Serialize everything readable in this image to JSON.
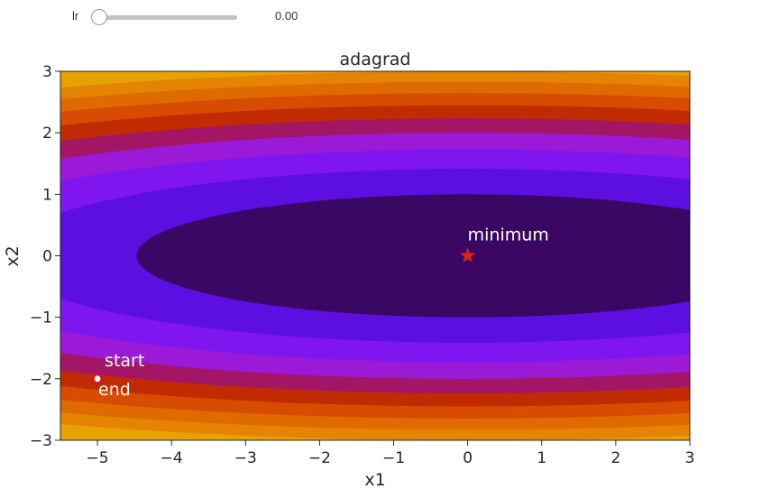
{
  "slider": {
    "label": "lr",
    "value_text": "0.00",
    "value": 0.0,
    "min": 0.0
  },
  "chart_data": {
    "type": "contour",
    "title": "adagrad",
    "xlabel": "x1",
    "ylabel": "x2",
    "xlim": [
      -5.5,
      3
    ],
    "ylim": [
      -3,
      3
    ],
    "xticks": [
      -5,
      -4,
      -3,
      -2,
      -1,
      0,
      1,
      2,
      3
    ],
    "yticks": [
      -3,
      -2,
      -1,
      0,
      1,
      2,
      3
    ],
    "xtick_labels": [
      "−5",
      "−4",
      "−3",
      "−2",
      "−1",
      "0",
      "1",
      "2",
      "3"
    ],
    "ytick_labels": [
      "−3",
      "−2",
      "−1",
      "0",
      "1",
      "2",
      "3"
    ],
    "function": "f(x1, x2) = 0.1*x1^2 + 2*x2^2",
    "contour_levels": [
      0,
      2,
      4,
      6,
      8,
      10,
      12,
      14,
      16,
      18,
      20
    ],
    "colormap": [
      "#3b0764",
      "#5c0fe0",
      "#7f16f0",
      "#9b1ad8",
      "#a31666",
      "#c22b00",
      "#d74c00",
      "#df6a00",
      "#e48400",
      "#e8a200"
    ],
    "minimum": {
      "x": 0,
      "y": 0,
      "label": "minimum",
      "color": "#e0201a"
    },
    "start": {
      "x": -5,
      "y": -2,
      "label": "start"
    },
    "end": {
      "x": -5,
      "y": -2,
      "label": "end"
    },
    "path": [
      [
        -5,
        -2
      ]
    ]
  }
}
